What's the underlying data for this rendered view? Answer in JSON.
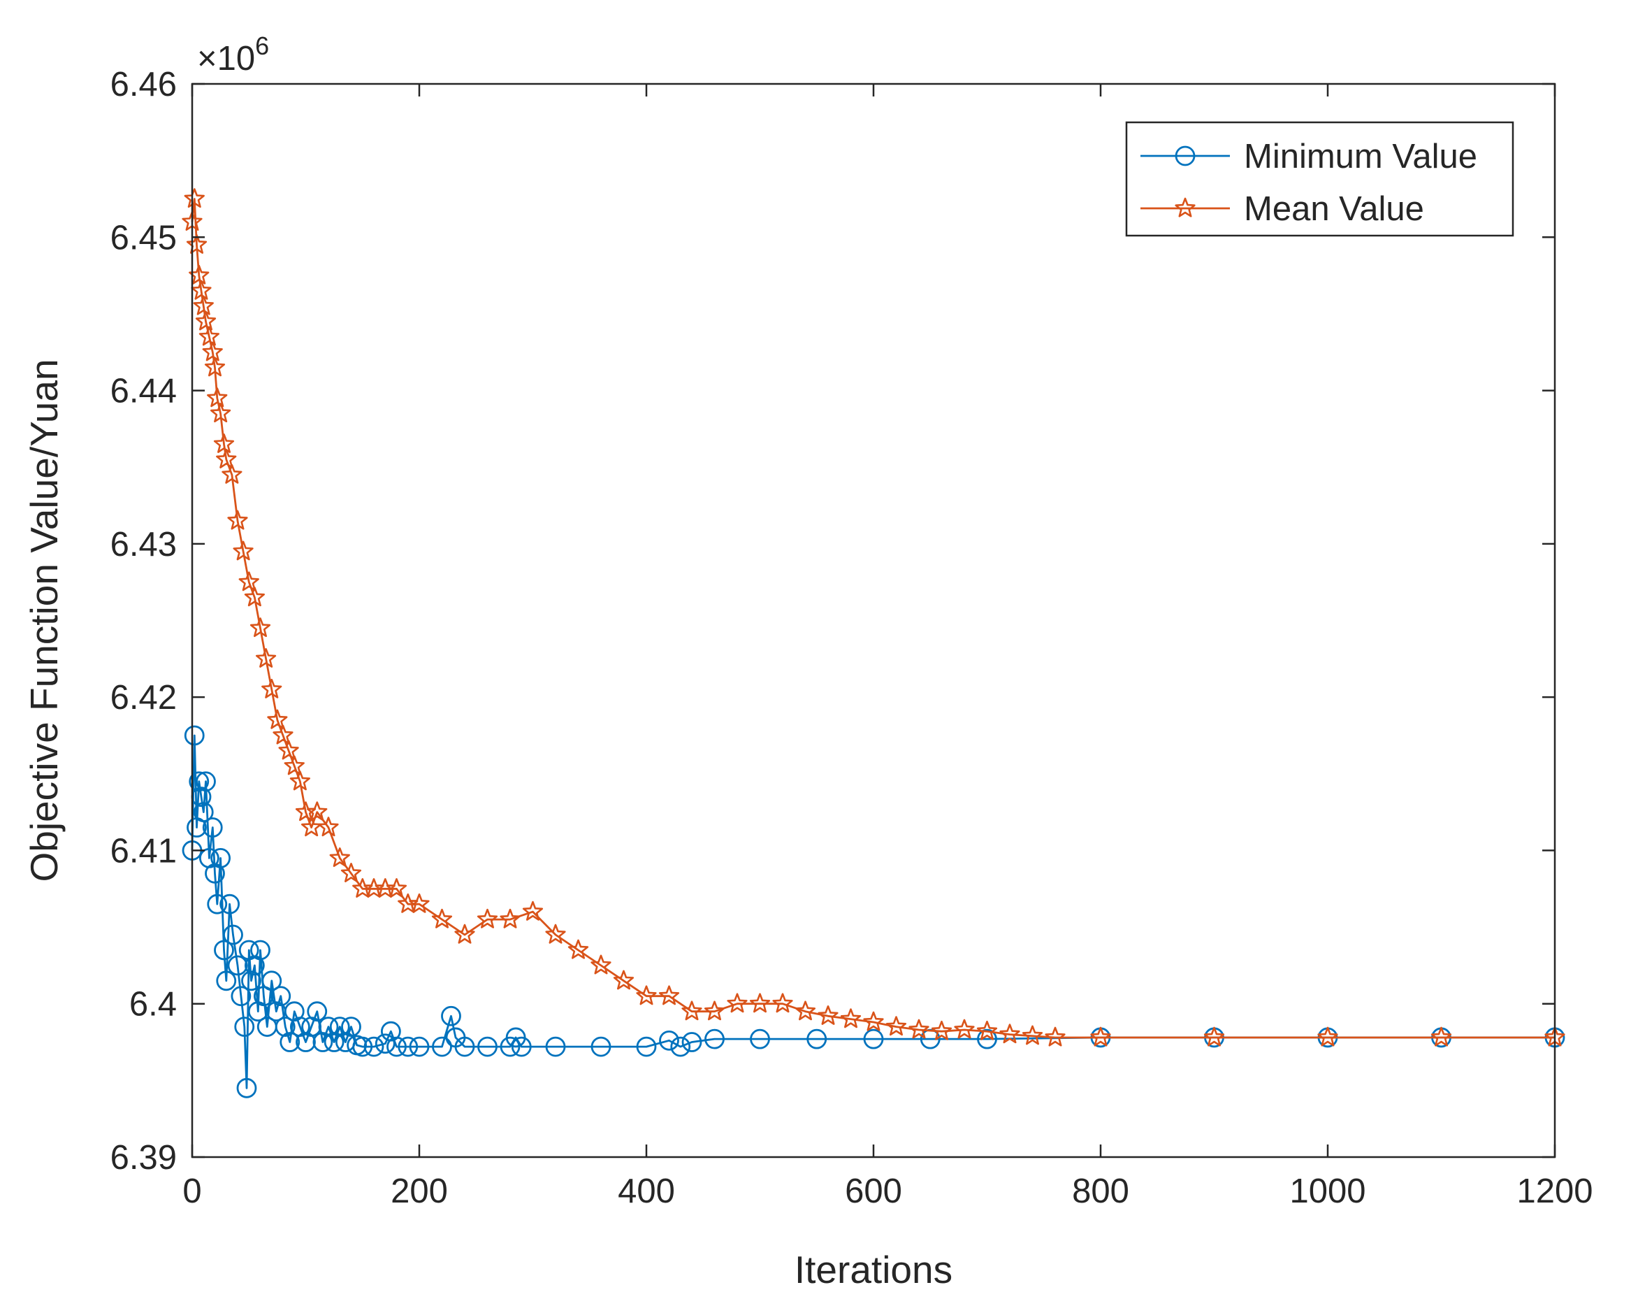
{
  "chart_data": {
    "type": "line",
    "title": "",
    "xlabel": "Iterations",
    "ylabel": "Objective Function Value/Yuan",
    "y_scale_label": "×10",
    "y_scale_exponent": "6",
    "xlim": [
      0,
      1200
    ],
    "ylim": [
      6.39,
      6.46
    ],
    "xticks": [
      0,
      200,
      400,
      600,
      800,
      1000,
      1200
    ],
    "xtick_labels": [
      "0",
      "200",
      "400",
      "600",
      "800",
      "1000",
      "1200"
    ],
    "yticks": [
      6.39,
      6.4,
      6.41,
      6.42,
      6.43,
      6.44,
      6.45,
      6.46
    ],
    "ytick_labels": [
      "6.39",
      "6.4",
      "6.41",
      "6.42",
      "6.43",
      "6.44",
      "6.45",
      "6.46"
    ],
    "grid": false,
    "legend_position": "top-right",
    "series": [
      {
        "name": "Minimum Value",
        "color": "#0072BD",
        "marker": "circle",
        "x": [
          0,
          2,
          4,
          6,
          8,
          10,
          12,
          15,
          18,
          20,
          22,
          25,
          28,
          30,
          33,
          36,
          40,
          43,
          46,
          48,
          50,
          52,
          55,
          58,
          60,
          63,
          66,
          70,
          74,
          78,
          82,
          86,
          90,
          95,
          100,
          105,
          110,
          115,
          120,
          125,
          130,
          135,
          140,
          145,
          150,
          160,
          170,
          175,
          180,
          190,
          200,
          220,
          228,
          232,
          240,
          260,
          280,
          285,
          290,
          320,
          360,
          400,
          420,
          430,
          440,
          460,
          500,
          550,
          600,
          650,
          700,
          800,
          900,
          1000,
          1100,
          1200
        ],
        "values": [
          6.41,
          6.4175,
          6.4115,
          6.4145,
          6.4135,
          6.4125,
          6.4145,
          6.4095,
          6.4115,
          6.4085,
          6.4065,
          6.4095,
          6.4035,
          6.4015,
          6.4065,
          6.4045,
          6.4025,
          6.4005,
          6.3985,
          6.3945,
          6.4035,
          6.4015,
          6.4025,
          6.3995,
          6.4035,
          6.4005,
          6.3985,
          6.4015,
          6.3995,
          6.4005,
          6.3985,
          6.3975,
          6.3995,
          6.3985,
          6.3975,
          6.3985,
          6.3995,
          6.3975,
          6.3985,
          6.3975,
          6.3985,
          6.3975,
          6.3985,
          6.3973,
          6.3972,
          6.3972,
          6.3974,
          6.3982,
          6.3972,
          6.3972,
          6.3972,
          6.3972,
          6.3992,
          6.3978,
          6.3972,
          6.3972,
          6.3972,
          6.3978,
          6.3972,
          6.3972,
          6.3972,
          6.3972,
          6.3976,
          6.3972,
          6.3975,
          6.3977,
          6.3977,
          6.3977,
          6.3977,
          6.3977,
          6.3977,
          6.3978,
          6.3978,
          6.3978,
          6.3978,
          6.3978
        ]
      },
      {
        "name": "Mean Value",
        "color": "#D95319",
        "marker": "star",
        "x": [
          0,
          2,
          4,
          6,
          8,
          10,
          12,
          15,
          18,
          20,
          22,
          25,
          28,
          30,
          35,
          40,
          45,
          50,
          55,
          60,
          65,
          70,
          75,
          80,
          85,
          90,
          95,
          100,
          105,
          110,
          120,
          130,
          140,
          150,
          160,
          170,
          180,
          190,
          200,
          220,
          240,
          260,
          280,
          300,
          320,
          340,
          360,
          380,
          400,
          420,
          440,
          460,
          480,
          500,
          520,
          540,
          560,
          580,
          600,
          620,
          640,
          660,
          680,
          700,
          720,
          740,
          760,
          800,
          900,
          1000,
          1100,
          1200
        ],
        "values": [
          6.451,
          6.4525,
          6.4495,
          6.4475,
          6.4465,
          6.4455,
          6.4445,
          6.4435,
          6.4425,
          6.4415,
          6.4395,
          6.4385,
          6.4365,
          6.4355,
          6.4345,
          6.4315,
          6.4295,
          6.4275,
          6.4265,
          6.4245,
          6.4225,
          6.4205,
          6.4185,
          6.4175,
          6.4165,
          6.4155,
          6.4145,
          6.4125,
          6.4115,
          6.4125,
          6.4115,
          6.4095,
          6.4085,
          6.4075,
          6.4075,
          6.4075,
          6.4075,
          6.4065,
          6.4065,
          6.4055,
          6.4045,
          6.4055,
          6.4055,
          6.406,
          6.4045,
          6.4035,
          6.4025,
          6.4015,
          6.4005,
          6.4005,
          6.3995,
          6.3995,
          6.4,
          6.4,
          6.4,
          6.3995,
          6.3992,
          6.399,
          6.3988,
          6.3985,
          6.3983,
          6.3982,
          6.3983,
          6.3982,
          6.398,
          6.3979,
          6.3978,
          6.3978,
          6.3978,
          6.3978,
          6.3978,
          6.3978
        ]
      }
    ]
  }
}
